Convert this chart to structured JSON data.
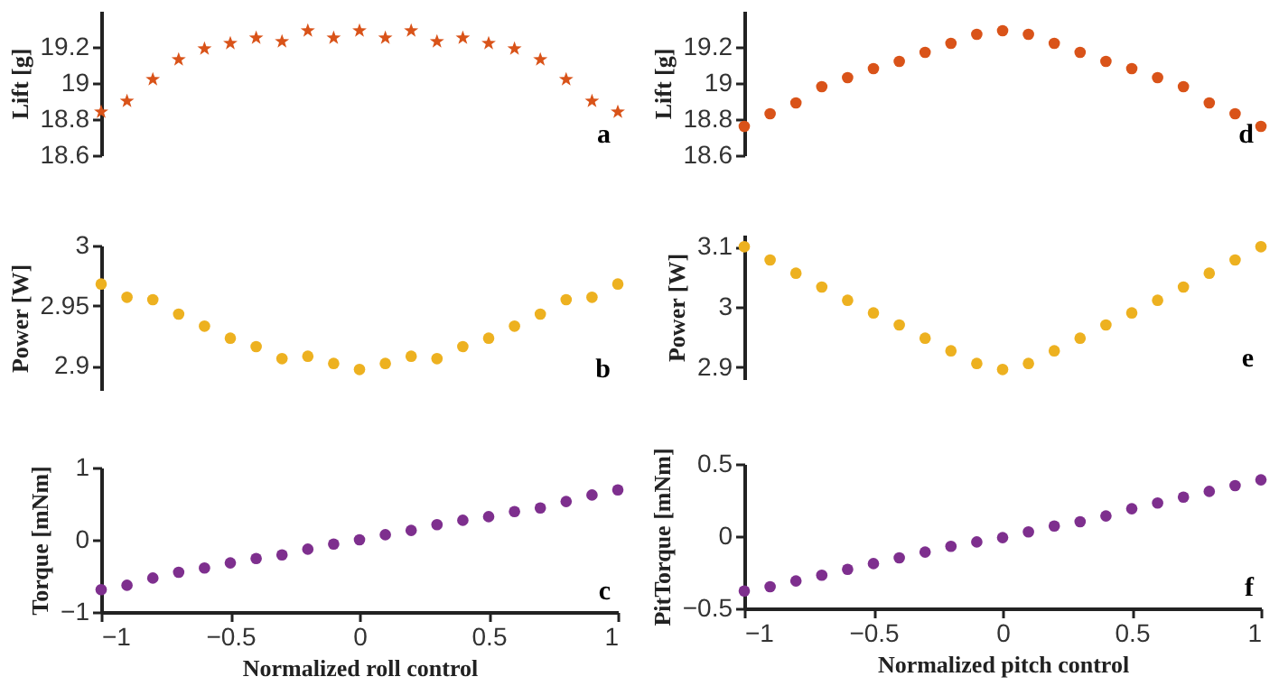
{
  "chart_data": [
    {
      "type": "scatter",
      "ylabel": "Lift [g]",
      "annotations": [
        "a"
      ],
      "marker": "star",
      "tick_labels": "y",
      "xlim": [
        -1,
        1
      ],
      "xticks": [
        -1,
        -0.5,
        0,
        0.5,
        1
      ],
      "ylim": [
        18.6,
        19.4
      ],
      "yticks": [
        18.6,
        18.8,
        19,
        19.2
      ],
      "x": [
        -1,
        -0.9,
        -0.8,
        -0.7,
        -0.6,
        -0.5,
        -0.4,
        -0.3,
        -0.2,
        -0.1,
        0,
        0.1,
        0.2,
        0.3,
        0.4,
        0.5,
        0.6,
        0.7,
        0.8,
        0.9,
        1
      ],
      "series": [
        {
          "color": "#d95319",
          "values": [
            18.84,
            18.9,
            19.02,
            19.13,
            19.19,
            19.22,
            19.25,
            19.23,
            19.29,
            19.25,
            19.29,
            19.25,
            19.29,
            19.23,
            19.25,
            19.22,
            19.19,
            19.13,
            19.02,
            18.9,
            18.84
          ]
        }
      ]
    },
    {
      "type": "scatter",
      "ylabel": "Lift [g]",
      "annotations": [
        "d"
      ],
      "marker": "circle",
      "tick_labels": "y",
      "xlim": [
        -1,
        1
      ],
      "xticks": [
        -1,
        -0.5,
        0,
        0.5,
        1
      ],
      "ylim": [
        18.6,
        19.4
      ],
      "yticks": [
        18.6,
        18.8,
        19,
        19.2
      ],
      "x": [
        -1,
        -0.9,
        -0.8,
        -0.7,
        -0.6,
        -0.5,
        -0.4,
        -0.3,
        -0.2,
        -0.1,
        0,
        0.1,
        0.2,
        0.3,
        0.4,
        0.5,
        0.6,
        0.7,
        0.8,
        0.9,
        1
      ],
      "series": [
        {
          "color": "#d95319",
          "values": [
            18.76,
            18.83,
            18.89,
            18.98,
            19.03,
            19.08,
            19.12,
            19.17,
            19.22,
            19.27,
            19.29,
            19.27,
            19.22,
            19.17,
            19.12,
            19.08,
            19.03,
            18.98,
            18.89,
            18.83,
            18.76
          ]
        }
      ]
    },
    {
      "type": "scatter",
      "ylabel": "Power [W]",
      "annotations": [
        "b"
      ],
      "marker": "circle",
      "tick_labels": "y",
      "xlim": [
        -1,
        1
      ],
      "xticks": [
        -1,
        -0.5,
        0,
        0.5,
        1
      ],
      "ylim": [
        2.88,
        3
      ],
      "yticks": [
        2.9,
        2.95,
        3
      ],
      "x": [
        -1,
        -0.9,
        -0.8,
        -0.7,
        -0.6,
        -0.5,
        -0.4,
        -0.3,
        -0.2,
        -0.1,
        0,
        0.1,
        0.2,
        0.3,
        0.4,
        0.5,
        0.6,
        0.7,
        0.8,
        0.9,
        1
      ],
      "series": [
        {
          "color": "#edb120",
          "values": [
            2.968,
            2.957,
            2.955,
            2.943,
            2.933,
            2.923,
            2.916,
            2.906,
            2.908,
            2.902,
            2.897,
            2.902,
            2.908,
            2.906,
            2.916,
            2.923,
            2.933,
            2.943,
            2.955,
            2.957,
            2.968
          ]
        }
      ]
    },
    {
      "type": "scatter",
      "ylabel": "Power [W]",
      "annotations": [
        "e"
      ],
      "marker": "circle",
      "tick_labels": "y",
      "xlim": [
        -1,
        1
      ],
      "xticks": [
        -1,
        -0.5,
        0,
        0.5,
        1
      ],
      "ylim": [
        2.88,
        3.12
      ],
      "yticks": [
        2.9,
        3,
        3.1
      ],
      "x": [
        -1,
        -0.9,
        -0.8,
        -0.7,
        -0.6,
        -0.5,
        -0.4,
        -0.3,
        -0.2,
        -0.1,
        0,
        0.1,
        0.2,
        0.3,
        0.4,
        0.5,
        0.6,
        0.7,
        0.8,
        0.9,
        1
      ],
      "series": [
        {
          "color": "#edb120",
          "values": [
            3.1,
            3.078,
            3.056,
            3.033,
            3.011,
            2.99,
            2.97,
            2.948,
            2.927,
            2.906,
            2.896,
            2.906,
            2.927,
            2.948,
            2.97,
            2.99,
            3.011,
            3.033,
            3.056,
            3.078,
            3.1
          ]
        }
      ]
    },
    {
      "type": "scatter",
      "xlabel": "Normalized roll control",
      "ylabel": "Torque [mNm]",
      "annotations": [
        "c"
      ],
      "marker": "circle",
      "xlim": [
        -1,
        1
      ],
      "xticks": [
        -1,
        -0.5,
        0,
        0.5,
        1
      ],
      "ylim": [
        -1,
        1
      ],
      "yticks": [
        -1,
        0,
        1
      ],
      "x": [
        -1,
        -0.9,
        -0.8,
        -0.7,
        -0.6,
        -0.5,
        -0.4,
        -0.3,
        -0.2,
        -0.1,
        0,
        0.1,
        0.2,
        0.3,
        0.4,
        0.5,
        0.6,
        0.7,
        0.8,
        0.9,
        1
      ],
      "series": [
        {
          "color": "#7e2f8e",
          "values": [
            -0.69,
            -0.63,
            -0.53,
            -0.45,
            -0.39,
            -0.32,
            -0.26,
            -0.21,
            -0.13,
            -0.06,
            0,
            0.07,
            0.13,
            0.21,
            0.27,
            0.32,
            0.39,
            0.44,
            0.53,
            0.62,
            0.69
          ]
        }
      ]
    },
    {
      "type": "scatter",
      "xlabel": "Normalized pitch control",
      "ylabel": "PitTorque [mNm]",
      "annotations": [
        "f"
      ],
      "marker": "circle",
      "xlim": [
        -1,
        1
      ],
      "xticks": [
        -1,
        -0.5,
        0,
        0.5,
        1
      ],
      "ylim": [
        -0.5,
        0.5
      ],
      "yticks": [
        -0.5,
        0,
        0.5
      ],
      "x": [
        -1,
        -0.9,
        -0.8,
        -0.7,
        -0.6,
        -0.5,
        -0.4,
        -0.3,
        -0.2,
        -0.1,
        0,
        0.1,
        0.2,
        0.3,
        0.4,
        0.5,
        0.6,
        0.7,
        0.8,
        0.9,
        1
      ],
      "series": [
        {
          "color": "#7e2f8e",
          "values": [
            -0.38,
            -0.35,
            -0.31,
            -0.27,
            -0.23,
            -0.19,
            -0.15,
            -0.11,
            -0.07,
            -0.04,
            -0.01,
            0.03,
            0.07,
            0.1,
            0.14,
            0.19,
            0.23,
            0.27,
            0.31,
            0.35,
            0.39
          ]
        }
      ]
    }
  ]
}
